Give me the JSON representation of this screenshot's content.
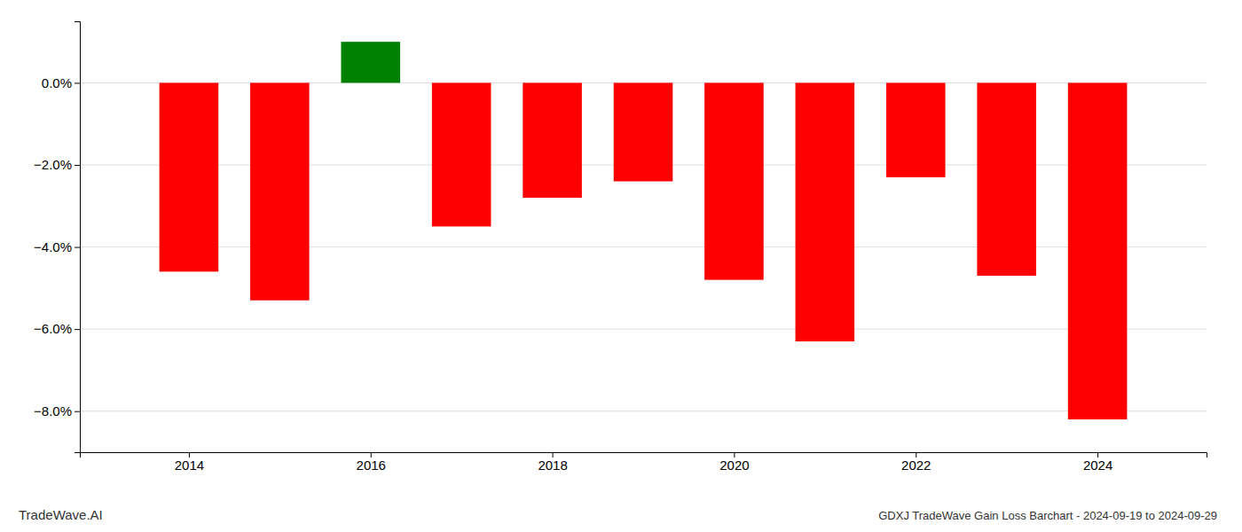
{
  "chart_data": {
    "type": "bar",
    "title": "GDXJ TradeWave Gain Loss Barchart - 2024-09-19 to 2024-09-29",
    "annotations": [
      "TradeWave.AI"
    ],
    "x": [
      2014,
      2015,
      2016,
      2017,
      2018,
      2019,
      2020,
      2021,
      2022,
      2023,
      2024
    ],
    "values": [
      -4.6,
      -5.3,
      1.0,
      -3.5,
      -2.8,
      -2.4,
      -4.8,
      -6.3,
      -2.3,
      -4.7,
      -8.2
    ],
    "colors": [
      "#ff0000",
      "#ff0000",
      "#008000",
      "#ff0000",
      "#ff0000",
      "#ff0000",
      "#ff0000",
      "#ff0000",
      "#ff0000",
      "#ff0000",
      "#ff0000"
    ],
    "xlim": [
      2012.8,
      2025.2
    ],
    "xticks": [
      2014,
      2016,
      2018,
      2020,
      2022,
      2024
    ],
    "ylim": [
      -9.0,
      1.5
    ],
    "yticks": [
      {
        "value": 0.0,
        "label": "0.0%"
      },
      {
        "value": -2.0,
        "label": "−2.0%"
      },
      {
        "value": -4.0,
        "label": "−4.0%"
      },
      {
        "value": -6.0,
        "label": "−6.0%"
      },
      {
        "value": -8.0,
        "label": "−8.0%"
      }
    ],
    "grid": true
  }
}
